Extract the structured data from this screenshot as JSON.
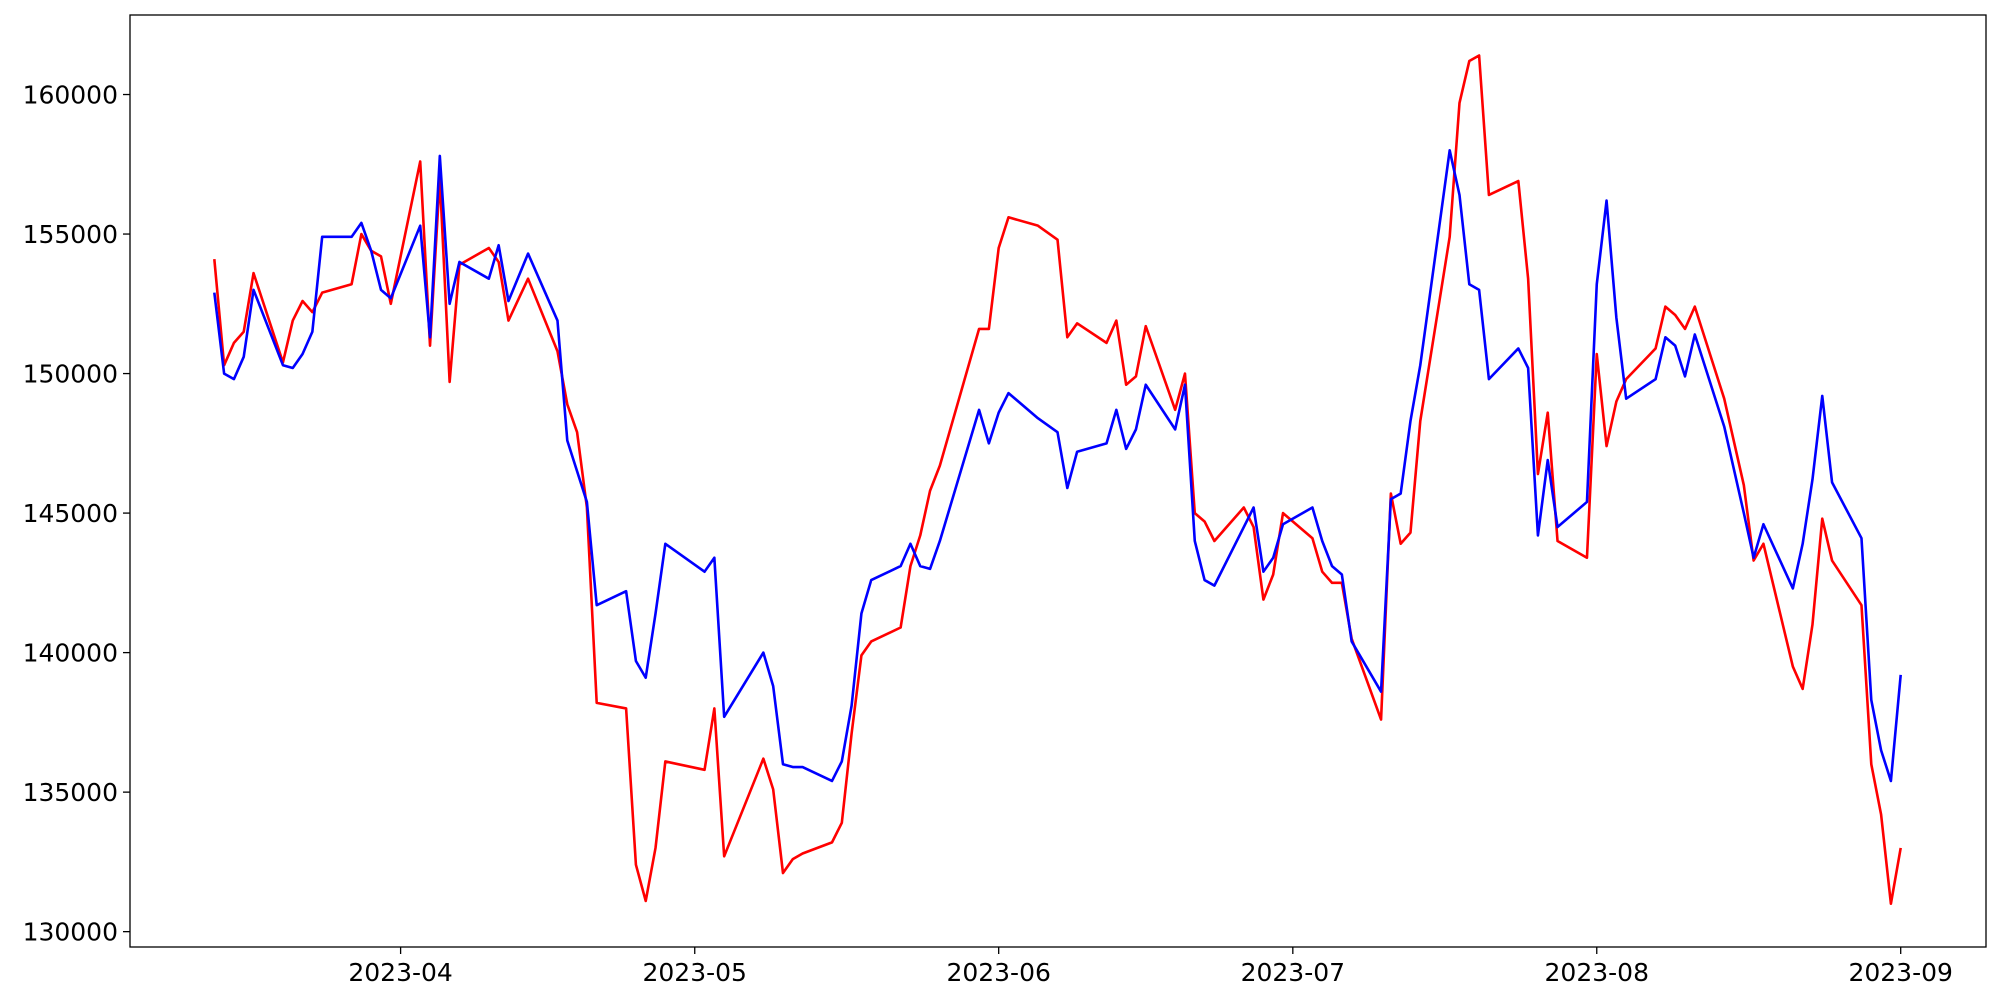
{
  "chart_data": {
    "type": "line",
    "x": [
      72,
      73,
      74,
      75,
      76,
      79,
      80,
      81,
      82,
      83,
      86,
      87,
      88,
      89,
      90,
      93,
      94,
      95,
      96,
      97,
      100,
      101,
      102,
      104,
      107,
      108,
      109,
      110,
      111,
      114,
      115,
      116,
      117,
      118,
      122,
      123,
      124,
      128,
      129,
      130,
      131,
      132,
      135,
      136,
      137,
      138,
      139,
      142,
      143,
      144,
      145,
      146,
      150,
      151,
      152,
      153,
      156,
      158,
      159,
      160,
      163,
      164,
      165,
      166,
      167,
      170,
      171,
      172,
      173,
      174,
      177,
      178,
      179,
      180,
      181,
      184,
      185,
      186,
      187,
      188,
      191,
      192,
      193,
      194,
      195,
      198,
      199,
      200,
      201,
      202,
      205,
      206,
      207,
      208,
      209,
      212,
      213,
      214,
      215,
      216,
      219,
      220,
      221,
      222,
      223,
      226,
      228,
      229,
      230,
      233,
      234,
      235,
      236,
      237,
      240,
      241,
      242,
      243,
      244
    ],
    "series": [
      {
        "color": "#ff0000",
        "values": [
          154100,
          150300,
          151100,
          151500,
          153600,
          150400,
          151900,
          152600,
          152200,
          152900,
          153200,
          155000,
          154400,
          154200,
          152500,
          157600,
          151000,
          157000,
          149700,
          153900,
          154500,
          154000,
          151900,
          153400,
          150800,
          148900,
          147900,
          145200,
          138200,
          138000,
          132400,
          131100,
          133000,
          136100,
          135800,
          138000,
          132700,
          136200,
          135100,
          132100,
          132600,
          132800,
          133200,
          133900,
          137100,
          139900,
          140400,
          140900,
          143100,
          144200,
          145800,
          146700,
          151600,
          151600,
          154500,
          155600,
          155300,
          154800,
          151300,
          151800,
          151100,
          151900,
          149600,
          149900,
          151700,
          148700,
          150000,
          145000,
          144700,
          144000,
          145200,
          144500,
          141900,
          142800,
          145000,
          144100,
          142900,
          142500,
          142500,
          140500,
          137600,
          145700,
          143900,
          144300,
          148300,
          154900,
          159700,
          161200,
          161400,
          156400,
          156900,
          153400,
          146400,
          148600,
          144000,
          143400,
          150700,
          147400,
          149000,
          149800,
          150900,
          152400,
          152100,
          151600,
          152400,
          149100,
          146000,
          143300,
          143900,
          139500,
          138700,
          141000,
          144800,
          143300,
          141700,
          136000,
          134200,
          131000,
          133000
        ]
      },
      {
        "color": "#0000ff",
        "values": [
          152900,
          150000,
          149800,
          150600,
          153000,
          150300,
          150200,
          150700,
          151500,
          154900,
          154900,
          155400,
          154400,
          153000,
          152700,
          155300,
          151300,
          157800,
          152500,
          154000,
          153400,
          154600,
          152600,
          154300,
          151900,
          147600,
          146500,
          145400,
          141700,
          142200,
          139700,
          139100,
          141400,
          143900,
          142900,
          143400,
          137700,
          140000,
          138800,
          136000,
          135900,
          135900,
          135400,
          136100,
          138100,
          141400,
          142600,
          143100,
          143900,
          143100,
          143000,
          144000,
          148700,
          147500,
          148600,
          149300,
          148400,
          147900,
          145900,
          147200,
          147500,
          148700,
          147300,
          148000,
          149600,
          148000,
          149600,
          144000,
          142600,
          142400,
          144500,
          145200,
          142900,
          143400,
          144600,
          145200,
          144000,
          143100,
          142800,
          140400,
          138600,
          145500,
          145700,
          148300,
          150300,
          158000,
          156400,
          153200,
          153000,
          149800,
          150900,
          150200,
          144200,
          146900,
          144500,
          145400,
          153200,
          156200,
          152000,
          149100,
          149800,
          151300,
          151000,
          149900,
          151400,
          148100,
          145000,
          143400,
          144600,
          142300,
          143900,
          146200,
          149200,
          146100,
          144100,
          138300,
          136500,
          135400,
          139200
        ]
      }
    ],
    "xlim": [
      63.4,
      252.7
    ],
    "xticks": [
      {
        "value": 91,
        "label": "2023-04"
      },
      {
        "value": 121,
        "label": "2023-05"
      },
      {
        "value": 152,
        "label": "2023-06"
      },
      {
        "value": 182,
        "label": "2023-07"
      },
      {
        "value": 213,
        "label": "2023-08"
      },
      {
        "value": 244,
        "label": "2023-09"
      }
    ],
    "ylim": [
      129450,
      162850
    ],
    "yticks": [
      130000,
      135000,
      140000,
      145000,
      150000,
      155000,
      160000
    ],
    "grid": false
  }
}
